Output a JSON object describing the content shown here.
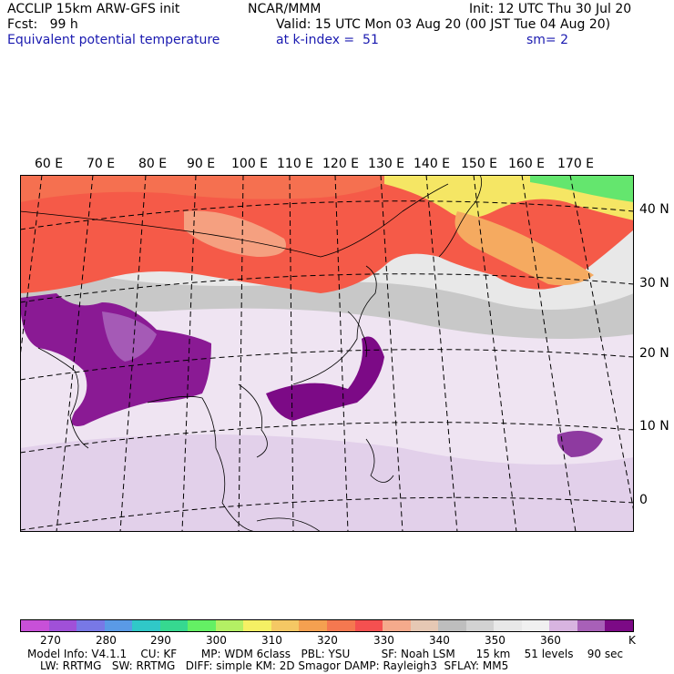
{
  "header": {
    "model": "ACCLIP 15km ARW-GFS init",
    "org": "NCAR/MMM",
    "init": "Init: 12 UTC Thu 30 Jul 20",
    "fcst": "Fcst:   99 h",
    "valid": "Valid: 15 UTC Mon 03 Aug 20 (00 JST Tue 04 Aug 20)",
    "field": "Equivalent potential temperature",
    "level": "at k-index =  51",
    "smooth": "sm= 2"
  },
  "axes": {
    "lon_labels": [
      "60 E",
      "70 E",
      "80 E",
      "90 E",
      "100 E",
      "110 E",
      "120 E",
      "130 E",
      "140 E",
      "150 E",
      "160 E",
      "170 E"
    ],
    "lat_labels": [
      "40 N",
      "30 N",
      "20 N",
      "10 N",
      "0"
    ]
  },
  "colorbar": {
    "colors": [
      "#c850d8",
      "#a050d8",
      "#7878e6",
      "#5a9ae6",
      "#30c8c8",
      "#36d890",
      "#64f064",
      "#b4f064",
      "#f5f064",
      "#f5c864",
      "#f5a050",
      "#f57850",
      "#f55050",
      "#f5aa8c",
      "#e6c8b4",
      "#bebebe",
      "#d2d2d2",
      "#e8e8e8",
      "#f0f0f0",
      "#d8b4e0",
      "#a860b8",
      "#7c0a86"
    ],
    "labels": [
      "270",
      "280",
      "290",
      "300",
      "310",
      "320",
      "330",
      "340",
      "350",
      "360"
    ],
    "unit": "K"
  },
  "footer": {
    "line1": "Model Info: V4.1.1    CU: KF       MP: WDM 6class   PBL: YSU         SF: Noah LSM      15 km    51 levels    90 sec",
    "line2": "LW: RRTMG   SW: RRTMG   DIFF: simple KM: 2D Smagor DAMP: Rayleigh3  SFLAY: MM5"
  }
}
